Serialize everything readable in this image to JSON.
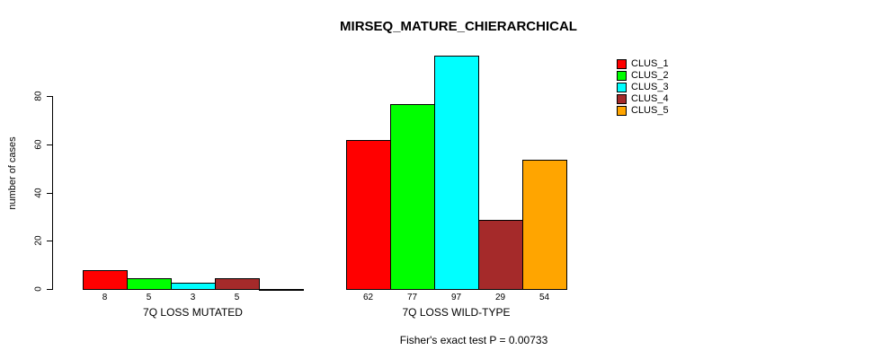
{
  "title": "MIRSEQ_MATURE_CHIERARCHICAL",
  "footer": "Fisher's exact test P = 0.00733",
  "chart_data": {
    "type": "bar",
    "title": "MIRSEQ_MATURE_CHIERARCHICAL",
    "ylabel": "number of cases",
    "xlabel": "",
    "ylim": [
      0,
      100
    ],
    "yticks": [
      0,
      20,
      40,
      60,
      80
    ],
    "grid": false,
    "legend_position": "topright",
    "clusters": [
      {
        "name": "CLUS_1",
        "color": "#FF0000"
      },
      {
        "name": "CLUS_2",
        "color": "#00FF00"
      },
      {
        "name": "CLUS_3",
        "color": "#00FFFF"
      },
      {
        "name": "CLUS_4",
        "color": "#A52A2A"
      },
      {
        "name": "CLUS_5",
        "color": "#FFA500"
      }
    ],
    "groups": [
      {
        "key": "mutated",
        "label": "7Q LOSS MUTATED",
        "values": [
          8,
          5,
          3,
          5,
          0
        ],
        "bar_labels": [
          "8",
          "5",
          "3",
          "5",
          ""
        ]
      },
      {
        "key": "wild-type",
        "label": "7Q LOSS WILD-TYPE",
        "values": [
          62,
          77,
          97,
          29,
          54
        ],
        "bar_labels": [
          "62",
          "77",
          "97",
          "29",
          "54"
        ]
      }
    ],
    "annotation": "Fisher's exact test P = 0.00733"
  }
}
